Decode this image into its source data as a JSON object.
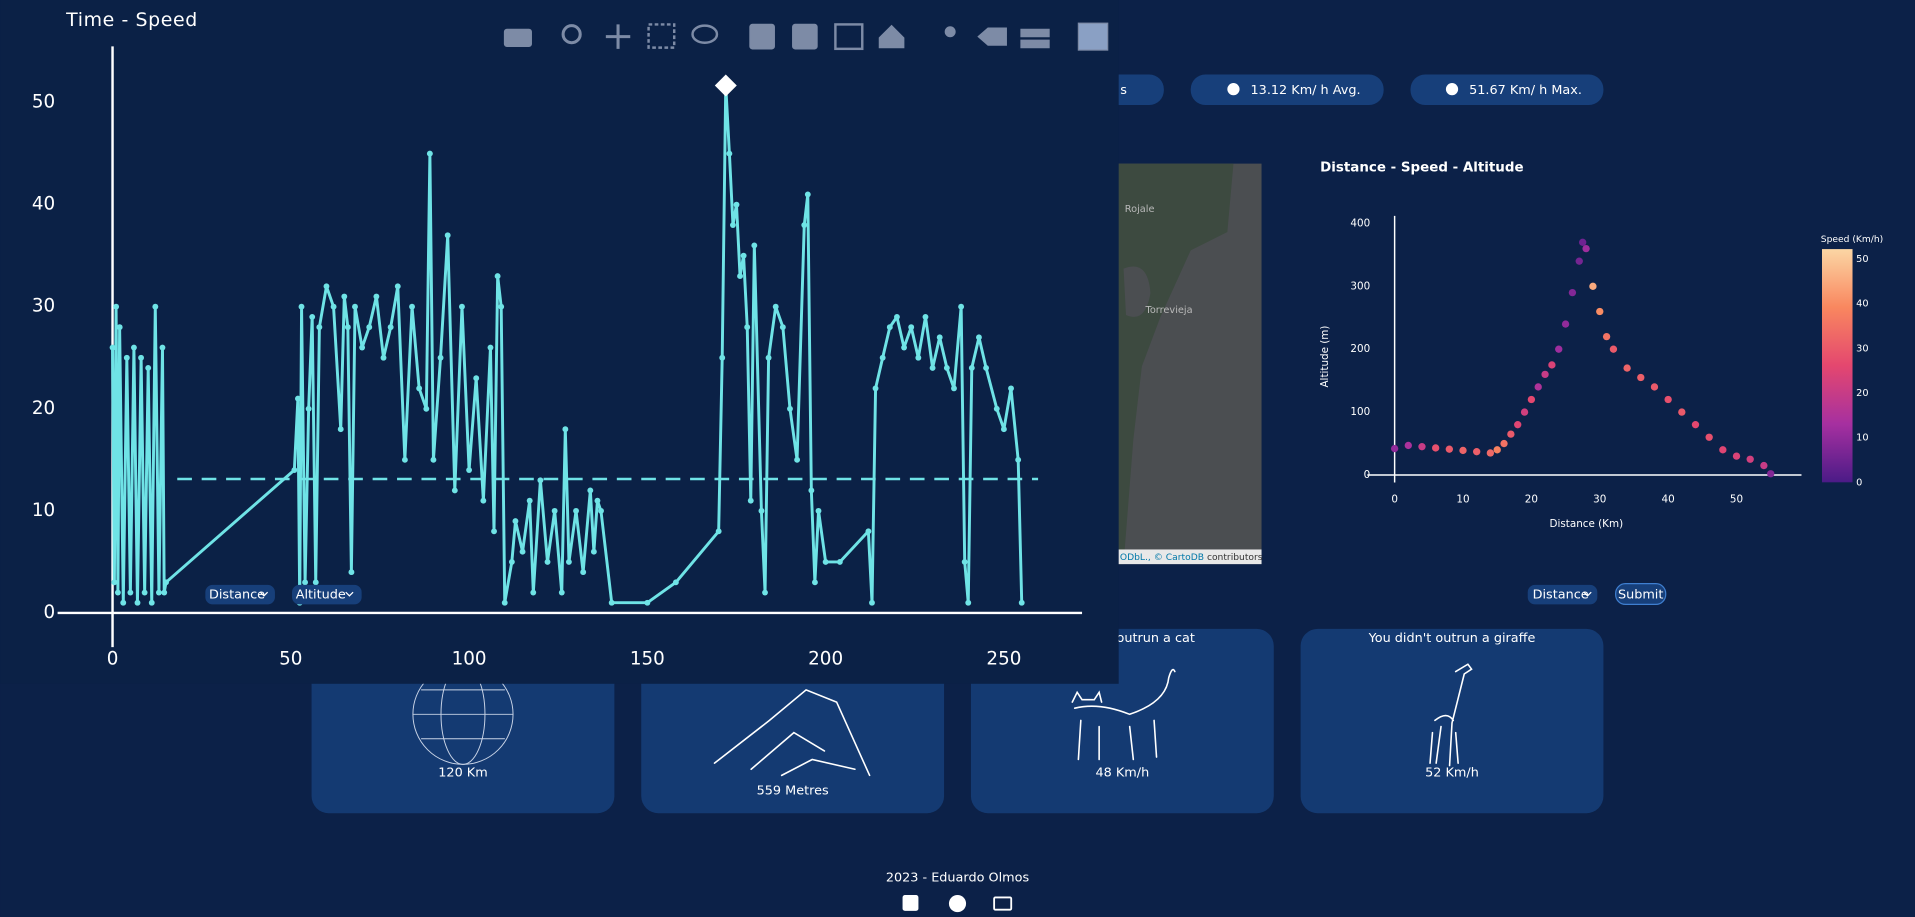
{
  "chart_data": [
    {
      "type": "line",
      "title": "Time - Speed",
      "color": "#6fe3e6",
      "x": [
        0,
        0.5,
        1,
        1.5,
        2,
        3,
        4,
        5,
        6,
        7,
        8,
        9,
        10,
        11,
        12,
        13,
        14,
        14.5,
        15,
        51,
        52,
        52.5,
        53,
        54,
        55,
        56,
        57,
        58,
        60,
        62,
        64,
        65,
        66,
        67,
        68,
        70,
        72,
        74,
        76,
        78,
        80,
        82,
        84,
        86,
        88,
        89,
        90,
        92,
        94,
        96,
        98,
        100,
        102,
        104,
        106,
        107,
        108,
        109,
        110,
        112,
        113,
        115,
        117,
        118,
        120,
        122,
        124,
        126,
        127,
        128,
        130,
        132,
        134,
        135,
        136,
        137,
        140,
        150,
        158,
        170,
        171,
        172,
        173,
        174,
        175,
        176,
        177,
        178,
        179,
        180,
        182,
        183,
        184,
        186,
        188,
        190,
        192,
        194,
        195,
        196,
        197,
        198,
        200,
        204,
        212,
        213,
        214,
        216,
        218,
        220,
        222,
        224,
        226,
        228,
        230,
        232,
        234,
        236,
        238,
        239,
        240,
        241,
        243,
        245,
        248,
        250,
        252,
        254,
        255
      ],
      "values": [
        26,
        3,
        30,
        2,
        28,
        1,
        25,
        2,
        26,
        1,
        25,
        2,
        24,
        1,
        30,
        2,
        26,
        2,
        3,
        14,
        21,
        1,
        30,
        3,
        20,
        29,
        3,
        28,
        32,
        30,
        18,
        31,
        28,
        4,
        30,
        26,
        28,
        31,
        25,
        28,
        32,
        15,
        30,
        22,
        20,
        45,
        15,
        25,
        37,
        12,
        30,
        14,
        23,
        11,
        26,
        8,
        33,
        30,
        1,
        5,
        9,
        6,
        11,
        2,
        13,
        5,
        10,
        2,
        18,
        5,
        10,
        4,
        12,
        6,
        11,
        10,
        1,
        1,
        3,
        8,
        25,
        51.67,
        45,
        38,
        40,
        33,
        35,
        28,
        11,
        36,
        10,
        2,
        25,
        30,
        28,
        20,
        15,
        38,
        41,
        12,
        3,
        10,
        5,
        5,
        8,
        1,
        22,
        25,
        28,
        29,
        26,
        28,
        25,
        29,
        24,
        27,
        24,
        22,
        30,
        5,
        1,
        24,
        27,
        24,
        20,
        18,
        22,
        15,
        1
      ],
      "hline": 13.12,
      "xlim": [
        -15.4,
        271.9
      ],
      "ylim": [
        -3.35,
        55.5
      ],
      "xticks": [
        0,
        50,
        100,
        150,
        200,
        250
      ],
      "yticks": [
        0,
        10,
        20,
        30,
        40,
        50
      ]
    },
    {
      "type": "scatter",
      "title": "Distance - Speed - Altitude",
      "xlabel": "Distance (Km)",
      "ylabel": "Altitude (m)",
      "x": [
        0,
        2,
        4,
        6,
        8,
        10,
        12,
        14,
        15,
        16,
        17,
        18,
        19,
        20,
        21,
        22,
        23,
        24,
        25,
        26,
        27,
        27.5,
        28,
        29,
        30,
        31,
        32,
        34,
        36,
        38,
        40,
        42,
        44,
        46,
        48,
        50,
        52,
        54,
        55
      ],
      "values": [
        42,
        47,
        45,
        43,
        41,
        39,
        37,
        35,
        40,
        50,
        65,
        80,
        100,
        120,
        140,
        160,
        175,
        200,
        240,
        290,
        340,
        370,
        360,
        300,
        260,
        220,
        200,
        170,
        155,
        140,
        120,
        100,
        80,
        60,
        40,
        30,
        25,
        15,
        2
      ],
      "color_values": [
        10,
        14,
        20,
        28,
        30,
        32,
        31,
        33,
        38,
        35,
        30,
        25,
        22,
        26,
        15,
        20,
        24,
        12,
        10,
        8,
        6,
        5,
        12,
        45,
        40,
        35,
        30,
        32,
        31,
        30,
        28,
        30,
        26,
        28,
        25,
        24,
        22,
        20,
        8
      ],
      "colorbar_title": "Speed (Km/h)",
      "colorscale": [
        "#4b1b87",
        "#a630a0",
        "#e4476f",
        "#f9875f",
        "#fbd6a4"
      ],
      "clim": [
        0,
        52.2
      ],
      "cticks": [
        0,
        10,
        20,
        30,
        40,
        50
      ],
      "xlim": [
        -4,
        59.5
      ],
      "ylim": [
        -12,
        412
      ],
      "xticks": [
        0,
        10,
        20,
        30,
        40,
        50
      ],
      "yticks": [
        0,
        100,
        200,
        300,
        400
      ]
    }
  ],
  "stats": [
    "s",
    "13.12 Km/ h Avg.",
    "51.67 Km/ h Max."
  ],
  "map": {
    "places": [
      "Rojale",
      "Torrevieja"
    ],
    "attribution": [
      "ODbL., ©",
      "CartoDB",
      "contributors"
    ]
  },
  "controls": {
    "left": [
      "Distance",
      "Altitude"
    ],
    "right": "Distance",
    "submit": "Submit"
  },
  "cards": [
    {
      "value": "120 Km"
    },
    {
      "value": "559 Metres"
    },
    {
      "title": "You didn't outrun a cat",
      "value": "48 Km/h"
    },
    {
      "title": "You didn't outrun a giraffe",
      "value": "52 Km/h"
    }
  ],
  "footer": "2023 - Eduardo Olmos"
}
